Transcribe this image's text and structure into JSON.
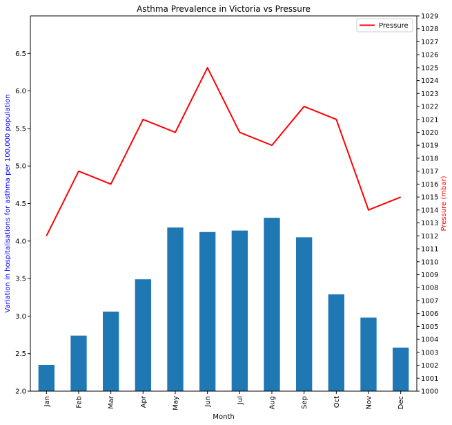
{
  "chart_data": {
    "type": "bar",
    "title": "Asthma Prevalence in Victoria vs Pressure",
    "xlabel": "Month",
    "ylabel": "Variation in hospitalisations for asthma per 100,000 population",
    "y2label": "Pressure (mbar)",
    "categories": [
      "Jan",
      "Feb",
      "Mar",
      "Apr",
      "May",
      "Jun",
      "Jul",
      "Aug",
      "Sep",
      "Oct",
      "Nov",
      "Dec"
    ],
    "series": [
      {
        "axis": "left",
        "type": "bar",
        "color": "#1f77b4",
        "values": [
          2.35,
          2.74,
          3.06,
          3.49,
          4.18,
          4.12,
          4.14,
          4.31,
          4.05,
          3.29,
          2.98,
          2.58
        ]
      },
      {
        "name": "Pressure",
        "axis": "right",
        "type": "line",
        "color": "#ff0000",
        "values": [
          1012,
          1017,
          1016,
          1021,
          1020,
          1025,
          1020,
          1019,
          1022,
          1021,
          1014,
          1015
        ]
      }
    ],
    "ylim": [
      2.0,
      7.0
    ],
    "y_ticks": [
      "2.0",
      "2.5",
      "3.0",
      "3.5",
      "4.0",
      "4.5",
      "5.0",
      "5.5",
      "6.0",
      "6.5"
    ],
    "y2lim": [
      1000,
      1029
    ],
    "y2_ticks": [
      "1000",
      "1001",
      "1002",
      "1003",
      "1004",
      "1005",
      "1006",
      "1007",
      "1008",
      "1009",
      "1010",
      "1011",
      "1012",
      "1013",
      "1014",
      "1015",
      "1016",
      "1017",
      "1018",
      "1019",
      "1020",
      "1021",
      "1022",
      "1023",
      "1024",
      "1025",
      "1026",
      "1027",
      "1028",
      "1029"
    ],
    "legend": {
      "position": "top-right",
      "entries": [
        "Pressure"
      ]
    },
    "ylabel_color": "#0000ff",
    "y2label_color": "#ff0000",
    "grid": false
  }
}
